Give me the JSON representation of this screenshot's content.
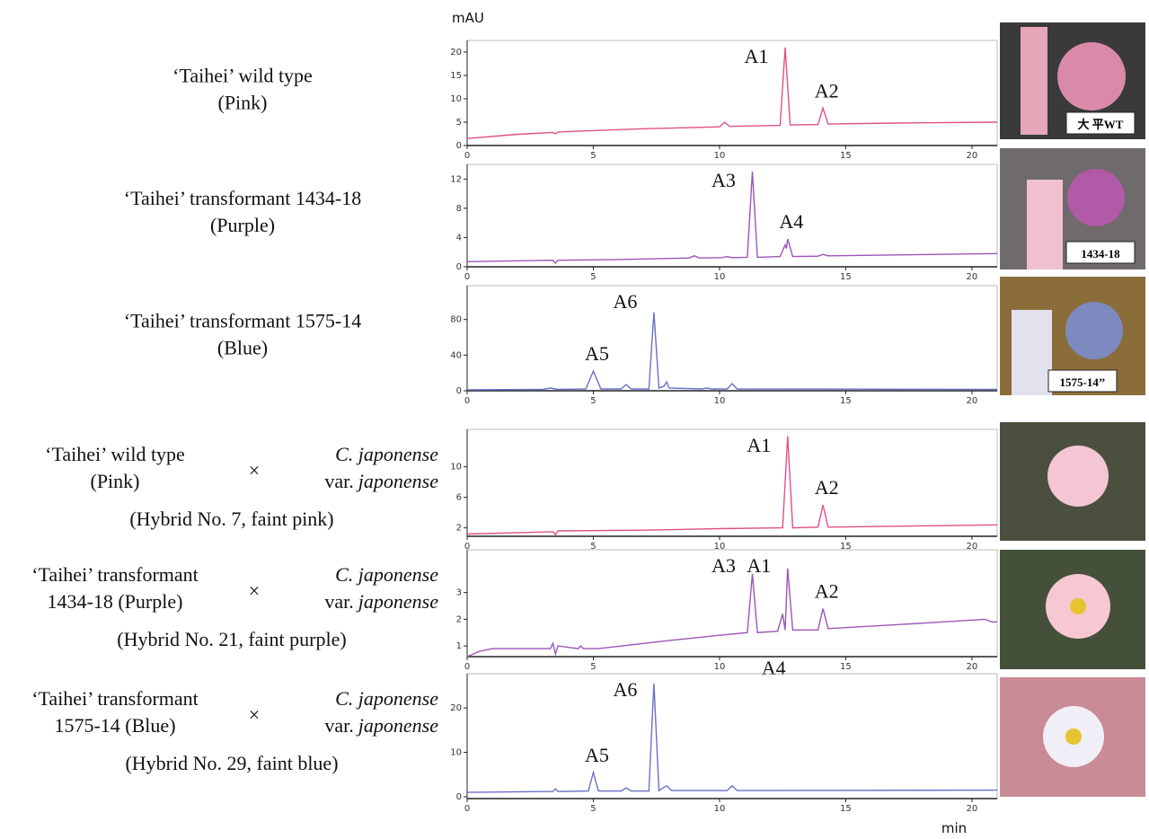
{
  "chart_data": [
    {
      "type": "line",
      "y_label": "mAU",
      "sample": [
        "‘Taihei’ wild type",
        "(Pink)"
      ],
      "photo_label": "大 平WT",
      "color": "#e0508a",
      "x": [
        0,
        2,
        3.4,
        3.5,
        3.6,
        4.5,
        7,
        10,
        10.2,
        10.4,
        12.4,
        12.6,
        12.8,
        13.9,
        14.1,
        14.3,
        17,
        21
      ],
      "values": [
        1.5,
        2.4,
        2.8,
        2.5,
        2.9,
        3.1,
        3.6,
        4.0,
        5.0,
        4.1,
        4.3,
        21,
        4.4,
        4.5,
        8,
        4.6,
        4.8,
        5.0
      ],
      "xlim": [
        0,
        21
      ],
      "xticks": [
        0,
        5,
        10,
        15,
        20
      ],
      "ylim": [
        0,
        22.5
      ],
      "yticks": [
        0,
        5,
        10,
        15,
        20
      ],
      "annotations": [
        {
          "text": "A1",
          "x": 12.6
        },
        {
          "text": "A2",
          "x": 14.1
        }
      ]
    },
    {
      "type": "line",
      "sample": [
        "‘Taihei’ transformant 1434-18",
        "(Purple)"
      ],
      "photo_label": "1434-18",
      "color": "#9a55b8",
      "x": [
        0,
        3.4,
        3.5,
        3.6,
        6,
        8.8,
        9,
        9.2,
        10.1,
        10.3,
        10.5,
        11.1,
        11.3,
        11.5,
        12.4,
        12.6,
        12.65,
        12.7,
        12.9,
        13.9,
        14.1,
        14.3,
        21
      ],
      "values": [
        0.7,
        0.9,
        0.5,
        0.9,
        1.0,
        1.2,
        1.5,
        1.2,
        1.25,
        1.4,
        1.25,
        1.3,
        13,
        1.3,
        1.4,
        3.0,
        2.5,
        3.8,
        1.4,
        1.45,
        1.7,
        1.5,
        1.8
      ],
      "xlim": [
        0,
        21
      ],
      "xticks": [
        0,
        5,
        10,
        15,
        20
      ],
      "ylim": [
        0,
        14
      ],
      "yticks": [
        0,
        4,
        8,
        12
      ],
      "annotations": [
        {
          "text": "A3",
          "x": 11.3
        },
        {
          "text": "A4",
          "x": 12.7
        }
      ]
    },
    {
      "type": "line",
      "sample": [
        "‘Taihei’ transformant 1575-14",
        "(Blue)"
      ],
      "photo_label": "1575-14’’",
      "color": "#6a70c8",
      "x": [
        0,
        3,
        3.3,
        3.6,
        4.7,
        5.0,
        5.3,
        6.1,
        6.3,
        6.5,
        7.2,
        7.4,
        7.6,
        7.8,
        7.9,
        8.0,
        9.3,
        9.5,
        9.7,
        10.3,
        10.5,
        10.7,
        21
      ],
      "values": [
        1,
        1.5,
        3,
        1.5,
        2,
        22,
        2,
        2,
        7,
        2,
        2,
        88,
        3,
        5,
        10,
        3,
        2,
        3,
        2,
        2,
        8,
        2,
        1.5
      ],
      "xlim": [
        0,
        21
      ],
      "xticks": [
        0,
        5,
        10,
        15,
        20
      ],
      "ylim": [
        0,
        118
      ],
      "yticks": [
        0,
        40,
        80
      ],
      "annotations": [
        {
          "text": "A5",
          "x": 5.0
        },
        {
          "text": "A6",
          "x": 7.4
        }
      ]
    },
    {
      "type": "line",
      "parent1": [
        "‘Taihei’ wild type",
        "(Pink)"
      ],
      "cross": "×",
      "parent2": [
        [
          {
            "text": "C. japonense",
            "italic": true
          }
        ],
        [
          {
            "text": "var.",
            "italic": false
          },
          {
            "text": "japonense",
            "italic": true
          }
        ]
      ],
      "hybrid": "(Hybrid No. 7, faint pink)",
      "color": "#e0508a",
      "x": [
        0,
        3.4,
        3.5,
        3.6,
        7,
        10,
        12.5,
        12.7,
        12.9,
        13.9,
        14.1,
        14.3,
        21
      ],
      "values": [
        1.2,
        1.5,
        1.1,
        1.6,
        1.7,
        1.9,
        2.0,
        14,
        2.0,
        2.1,
        5,
        2.1,
        2.4
      ],
      "xlim": [
        0,
        21
      ],
      "xticks": [
        0,
        5,
        10,
        15,
        20
      ],
      "ylim": [
        0.9,
        14.9
      ],
      "yticks": [
        2,
        6,
        10
      ],
      "annotations": [
        {
          "text": "A1",
          "x": 12.7
        },
        {
          "text": "A2",
          "x": 14.1
        }
      ]
    },
    {
      "type": "line",
      "parent1": [
        "‘Taihei’ transformant",
        "1434-18 (Purple)"
      ],
      "cross": "×",
      "parent2": [
        [
          {
            "text": "C. japonense",
            "italic": true
          }
        ],
        [
          {
            "text": "var.",
            "italic": false
          },
          {
            "text": "japonense",
            "italic": true
          }
        ]
      ],
      "hybrid": "(Hybrid No. 21, faint purple)",
      "color": "#9a55b8",
      "x": [
        0,
        0.5,
        1,
        3.3,
        3.4,
        3.5,
        3.6,
        4.4,
        4.5,
        4.6,
        5.2,
        8,
        10,
        11.1,
        11.3,
        11.5,
        12.3,
        12.5,
        12.6,
        12.7,
        12.9,
        13.9,
        14.1,
        14.3,
        18,
        20.5,
        20.8,
        21
      ],
      "values": [
        0.6,
        0.8,
        0.9,
        0.9,
        1.1,
        0.7,
        1.0,
        0.9,
        1.0,
        0.9,
        0.9,
        1.2,
        1.4,
        1.5,
        3.7,
        1.5,
        1.55,
        2.2,
        1.6,
        3.9,
        1.6,
        1.6,
        2.4,
        1.65,
        1.85,
        2.0,
        1.9,
        1.9
      ],
      "xlim": [
        0,
        21
      ],
      "xticks": [
        0,
        5,
        10,
        15,
        20
      ],
      "ylim": [
        0.6,
        4.6
      ],
      "yticks": [
        1,
        2,
        3
      ],
      "annotations": [
        {
          "text": "A3",
          "x": 11.3
        },
        {
          "text": "A1",
          "x": 12.7
        },
        {
          "text": "A2",
          "x": 14.1
        },
        {
          "text": "A4",
          "x": 12.5,
          "below": true
        }
      ]
    },
    {
      "type": "line",
      "x_label": "min",
      "parent1": [
        "‘Taihei’ transformant",
        "1575-14 (Blue)"
      ],
      "cross": "×",
      "parent2": [
        [
          {
            "text": "C. japonense",
            "italic": true
          }
        ],
        [
          {
            "text": "var.",
            "italic": false
          },
          {
            "text": "japonense",
            "italic": true
          }
        ]
      ],
      "hybrid": "(Hybrid No. 29, faint blue)",
      "color": "#6a70c8",
      "x": [
        0,
        3.4,
        3.5,
        3.6,
        4.8,
        5.0,
        5.2,
        6.1,
        6.3,
        6.5,
        7.2,
        7.4,
        7.6,
        7.9,
        8.1,
        10.3,
        10.5,
        10.7,
        21
      ],
      "values": [
        1,
        1.2,
        1.8,
        1.2,
        1.3,
        5.5,
        1.3,
        1.3,
        2,
        1.3,
        1.3,
        25.5,
        1.4,
        2.5,
        1.4,
        1.4,
        2.5,
        1.4,
        1.5
      ],
      "xlim": [
        0,
        21
      ],
      "xticks": [
        0,
        5,
        10,
        15,
        20
      ],
      "ylim": [
        -0.4,
        27.7
      ],
      "yticks": [
        0,
        10,
        20
      ],
      "annotations": [
        {
          "text": "A5",
          "x": 5.0
        },
        {
          "text": "A6",
          "x": 7.4
        }
      ]
    }
  ]
}
